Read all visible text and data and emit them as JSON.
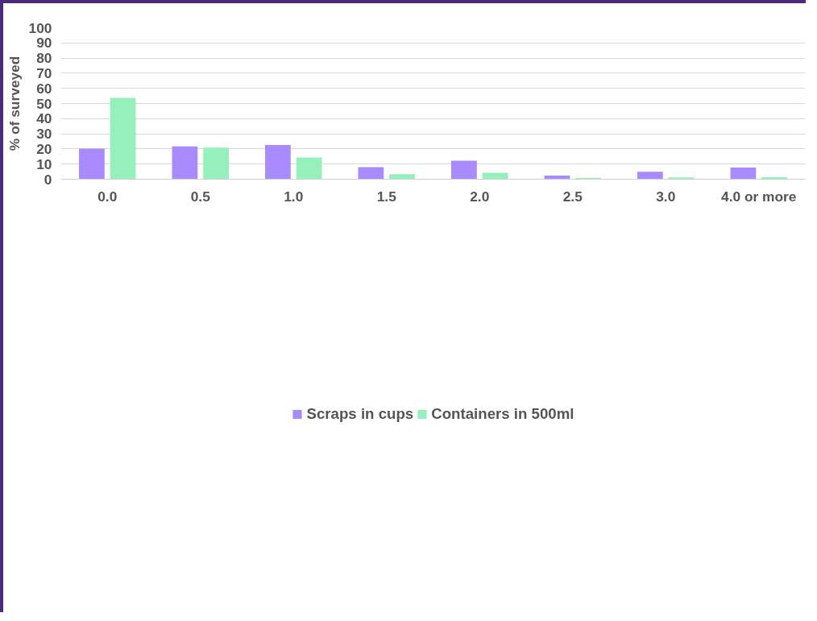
{
  "chart_data": {
    "type": "bar",
    "ylabel": "% of surveyed",
    "categories": [
      "0.0",
      "0.5",
      "1.0",
      "1.5",
      "2.0",
      "2.5",
      "3.0",
      "4.0 or more"
    ],
    "series": [
      {
        "name": "Scraps in cups",
        "color": "#a98bff",
        "values": [
          20.2,
          21.7,
          22.6,
          8.0,
          12.3,
          2.4,
          4.9,
          7.7
        ]
      },
      {
        "name": "Containers in 500ml",
        "color": "#96f0bb",
        "values": [
          53.7,
          20.9,
          14.4,
          3.3,
          4.3,
          0.9,
          1.2,
          1.3
        ]
      }
    ],
    "ylim": [
      0,
      100
    ],
    "yticks": [
      0,
      10,
      20,
      30,
      40,
      50,
      60,
      70,
      80,
      90,
      100
    ],
    "grid": "y",
    "legend": "bottom"
  }
}
